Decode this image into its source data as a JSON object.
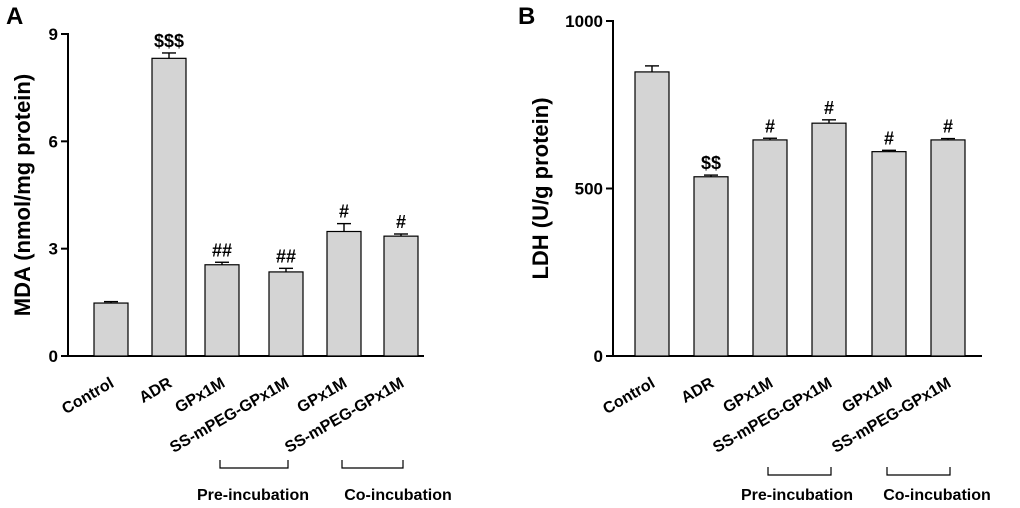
{
  "chart_data": [
    {
      "panel": "A",
      "type": "bar",
      "title": "",
      "xlabel": "",
      "ylabel": "MDA (nmol/mg protein)",
      "ylim": [
        0,
        9
      ],
      "yticks": [
        0,
        3,
        6,
        9
      ],
      "ytick_labels": [
        "0",
        "3",
        "6",
        "9"
      ],
      "categories": [
        "Control",
        "ADR",
        "GPx1M",
        "SS-mPEG-GPx1M",
        "GPx1M",
        "SS-mPEG-GPx1M"
      ],
      "values": [
        1.48,
        8.32,
        2.55,
        2.35,
        3.48,
        3.35
      ],
      "errors": [
        0.04,
        0.15,
        0.07,
        0.1,
        0.22,
        0.06
      ],
      "significance": [
        "",
        "$$$",
        "##",
        "##",
        "#",
        "#"
      ],
      "groups": [
        {
          "label": "Pre-incubation",
          "from": 2,
          "to": 3
        },
        {
          "label": "Co-incubation",
          "from": 4,
          "to": 5
        }
      ]
    },
    {
      "panel": "B",
      "type": "bar",
      "title": "",
      "xlabel": "",
      "ylabel": "LDH (U/g protein)",
      "ylim": [
        0,
        1000
      ],
      "yticks": [
        0,
        500,
        1000
      ],
      "ytick_labels": [
        "0",
        "500",
        "1000"
      ],
      "categories": [
        "Control",
        "ADR",
        "GPx1M",
        "SS-mPEG-GPx1M",
        "GPx1M",
        "SS-mPEG-GPx1M"
      ],
      "values": [
        848,
        535,
        645,
        695,
        610,
        645
      ],
      "errors": [
        18,
        5,
        5,
        10,
        4,
        4
      ],
      "significance": [
        "",
        "$$",
        "#",
        "#",
        "#",
        "#"
      ],
      "groups": [
        {
          "label": "Pre-incubation",
          "from": 2,
          "to": 3
        },
        {
          "label": "Co-incubation",
          "from": 4,
          "to": 5
        }
      ]
    }
  ]
}
